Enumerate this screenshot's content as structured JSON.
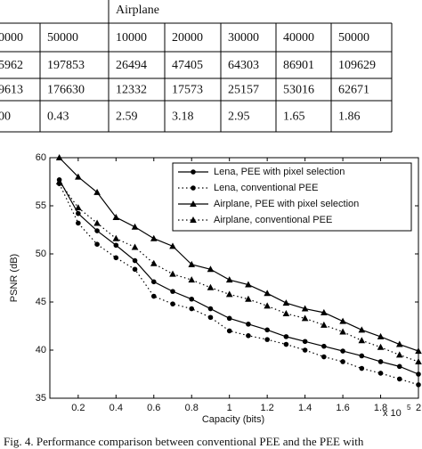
{
  "table": {
    "header": "Airplane",
    "rows": [
      [
        "0000",
        "50000",
        "10000",
        "20000",
        "30000",
        "40000",
        "50000"
      ],
      [
        "5962",
        "197853",
        "26494",
        "47405",
        "64303",
        "86901",
        "109629"
      ],
      [
        "9613",
        "176630",
        "12332",
        "17573",
        "25157",
        "53016",
        "62671"
      ],
      [
        "00",
        "0.43",
        "2.59",
        "3.18",
        "2.95",
        "1.65",
        "1.86"
      ]
    ]
  },
  "chart_data": {
    "type": "line",
    "x_label": "Capacity (bits)",
    "y_label": "PSNR (dB)",
    "x_exponent": {
      "base": "x 10",
      "power": "5"
    },
    "x": [
      0.1,
      0.2,
      0.3,
      0.4,
      0.5,
      0.6,
      0.7,
      0.8,
      0.9,
      1.0,
      1.1,
      1.2,
      1.3,
      1.4,
      1.5,
      1.6,
      1.7,
      1.8,
      1.9,
      2.0
    ],
    "series": [
      {
        "name": "Lena, PEE with pixel selection",
        "color": "#000000",
        "marker": "circle",
        "dash": "solid",
        "values": [
          57.7,
          54.2,
          52.4,
          50.9,
          49.3,
          47.1,
          46.1,
          45.3,
          44.3,
          43.3,
          42.7,
          42.1,
          41.4,
          40.9,
          40.4,
          39.9,
          39.4,
          38.8,
          38.3,
          37.5
        ]
      },
      {
        "name": "Lena, conventional PEE",
        "color": "#000000",
        "marker": "circle",
        "dash": "dotted",
        "values": [
          57.3,
          53.2,
          51.0,
          49.6,
          48.4,
          45.6,
          44.8,
          44.3,
          43.4,
          42.0,
          41.5,
          41.1,
          40.6,
          40.0,
          39.3,
          38.8,
          38.1,
          37.6,
          37.0,
          36.4
        ]
      },
      {
        "name": "Airplane, PEE with pixel selection",
        "color": "#000000",
        "marker": "triangle",
        "dash": "solid",
        "values": [
          60.0,
          58.0,
          56.4,
          53.8,
          52.8,
          51.6,
          50.8,
          48.9,
          48.4,
          47.3,
          46.8,
          45.9,
          44.9,
          44.3,
          43.9,
          43.0,
          42.1,
          41.4,
          40.6,
          39.9
        ]
      },
      {
        "name": "Airplane, conventional PEE",
        "color": "#000000",
        "marker": "triangle",
        "dash": "dotted",
        "values": [
          57.5,
          54.8,
          53.2,
          51.6,
          50.7,
          49.0,
          47.9,
          47.3,
          46.5,
          45.8,
          45.3,
          44.6,
          43.8,
          43.3,
          42.6,
          41.9,
          41.0,
          40.3,
          39.5,
          38.8
        ]
      }
    ],
    "xlim": [
      0.05,
      2
    ],
    "ylim": [
      35,
      60
    ],
    "xticks": [
      0.2,
      0.4,
      0.6,
      0.8,
      1,
      1.2,
      1.4,
      1.6,
      1.8,
      2
    ],
    "yticks": [
      35,
      40,
      45,
      50,
      55,
      60
    ],
    "legend": "upper right"
  },
  "caption": "Fig. 4.   Performance comparison between conventional PEE and the PEE with"
}
